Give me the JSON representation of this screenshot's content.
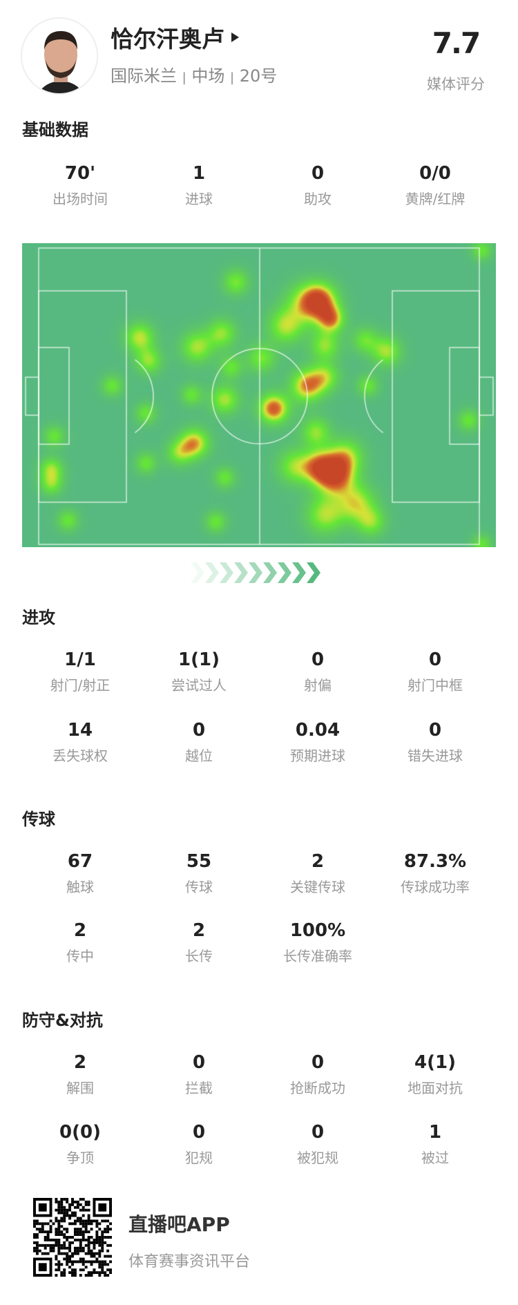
{
  "player": {
    "name": "恰尔汗奥卢",
    "team": "国际米兰",
    "position": "中场",
    "number": "20号",
    "separator": "|",
    "rating": "7.7",
    "rating_label": "媒体评分"
  },
  "sections": [
    {
      "title": "基础数据",
      "stats": [
        {
          "value": "70'",
          "label": "出场时间"
        },
        {
          "value": "1",
          "label": "进球"
        },
        {
          "value": "0",
          "label": "助攻"
        },
        {
          "value": "0/0",
          "label": "黄牌/红牌"
        }
      ]
    },
    {
      "title": "进攻",
      "stats": [
        {
          "value": "1/1",
          "label": "射门/射正"
        },
        {
          "value": "1(1)",
          "label": "尝试过人"
        },
        {
          "value": "0",
          "label": "射偏"
        },
        {
          "value": "0",
          "label": "射门中框"
        },
        {
          "value": "14",
          "label": "丢失球权"
        },
        {
          "value": "0",
          "label": "越位"
        },
        {
          "value": "0.04",
          "label": "预期进球"
        },
        {
          "value": "0",
          "label": "错失进球"
        }
      ]
    },
    {
      "title": "传球",
      "stats": [
        {
          "value": "67",
          "label": "触球"
        },
        {
          "value": "55",
          "label": "传球"
        },
        {
          "value": "2",
          "label": "关键传球"
        },
        {
          "value": "87.3%",
          "label": "传球成功率"
        },
        {
          "value": "2",
          "label": "传中"
        },
        {
          "value": "2",
          "label": "长传"
        },
        {
          "value": "100%",
          "label": "长传准确率"
        }
      ]
    },
    {
      "title": "防守&对抗",
      "stats": [
        {
          "value": "2",
          "label": "解围"
        },
        {
          "value": "0",
          "label": "拦截"
        },
        {
          "value": "0",
          "label": "抢断成功"
        },
        {
          "value": "4(1)",
          "label": "地面对抗"
        },
        {
          "value": "0(0)",
          "label": "争顶"
        },
        {
          "value": "0",
          "label": "犯规"
        },
        {
          "value": "0",
          "label": "被犯规"
        },
        {
          "value": "1",
          "label": "被过"
        }
      ]
    }
  ],
  "heatmap": {
    "pitch_color": "#57b97f",
    "attack_direction": "right"
  },
  "footer": {
    "app_name": "直播吧APP",
    "slogan": "体育赛事资讯平台",
    "icon": "qr-code-icon"
  }
}
